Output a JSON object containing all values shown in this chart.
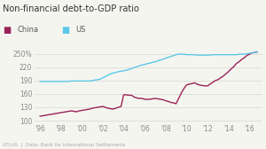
{
  "title": "Non-financial debt-to-GDP ratio",
  "legend": [
    "China",
    "US"
  ],
  "china_color": "#9b2257",
  "us_color": "#5bc8e8",
  "background_color": "#f5f5f0",
  "yticks": [
    100,
    130,
    160,
    190,
    220,
    250
  ],
  "ytick_labels": [
    "100",
    "130",
    "160",
    "190",
    "220",
    "250%"
  ],
  "xticks": [
    1996,
    1998,
    2000,
    2002,
    2004,
    2006,
    2008,
    2010,
    2012,
    2014,
    2016
  ],
  "xtick_labels": [
    "'96",
    "'98",
    "'00",
    "'02",
    "'04",
    "'06",
    "'08",
    "'10",
    "'12",
    "'14",
    "'16"
  ],
  "xlim": [
    1995.5,
    2017.2
  ],
  "ylim": [
    95,
    262
  ],
  "footer": "ATLAS  |  Data: Bank for International Settlements",
  "china_data": {
    "x": [
      1996,
      1996.25,
      1996.5,
      1996.75,
      1997,
      1997.25,
      1997.5,
      1997.75,
      1998,
      1998.25,
      1998.5,
      1998.75,
      1999,
      1999.25,
      1999.5,
      1999.75,
      2000,
      2000.25,
      2000.5,
      2000.75,
      2001,
      2001.25,
      2001.5,
      2001.75,
      2002,
      2002.25,
      2002.5,
      2002.75,
      2003,
      2003.25,
      2003.5,
      2003.75,
      2004,
      2004.25,
      2004.5,
      2004.75,
      2005,
      2005.25,
      2005.5,
      2005.75,
      2006,
      2006.25,
      2006.5,
      2006.75,
      2007,
      2007.25,
      2007.5,
      2007.75,
      2008,
      2008.25,
      2008.5,
      2008.75,
      2009,
      2009.25,
      2009.5,
      2009.75,
      2010,
      2010.25,
      2010.5,
      2010.75,
      2011,
      2011.25,
      2011.5,
      2011.75,
      2012,
      2012.25,
      2012.5,
      2012.75,
      2013,
      2013.25,
      2013.5,
      2013.75,
      2014,
      2014.25,
      2014.5,
      2014.75,
      2015,
      2015.25,
      2015.5,
      2015.75,
      2016,
      2016.25,
      2016.5,
      2016.75
    ],
    "y": [
      110,
      111,
      112,
      113,
      114,
      115,
      116,
      117,
      118,
      119,
      120,
      121,
      122,
      121,
      120,
      122,
      123,
      124,
      125,
      126,
      128,
      129,
      130,
      131,
      132,
      130,
      128,
      127,
      126,
      128,
      130,
      132,
      158,
      158,
      157,
      157,
      153,
      151,
      150,
      150,
      148,
      148,
      148,
      149,
      150,
      149,
      148,
      147,
      145,
      143,
      141,
      140,
      138,
      150,
      162,
      172,
      180,
      182,
      183,
      185,
      182,
      180,
      179,
      178,
      178,
      182,
      186,
      190,
      192,
      196,
      200,
      205,
      210,
      216,
      221,
      228,
      232,
      237,
      241,
      246,
      249,
      252,
      253,
      254
    ]
  },
  "us_data": {
    "x": [
      1996,
      1996.25,
      1996.5,
      1996.75,
      1997,
      1997.25,
      1997.5,
      1997.75,
      1998,
      1998.25,
      1998.5,
      1998.75,
      1999,
      1999.25,
      1999.5,
      1999.75,
      2000,
      2000.25,
      2000.5,
      2000.75,
      2001,
      2001.25,
      2001.5,
      2001.75,
      2002,
      2002.25,
      2002.5,
      2002.75,
      2003,
      2003.25,
      2003.5,
      2003.75,
      2004,
      2004.25,
      2004.5,
      2004.75,
      2005,
      2005.25,
      2005.5,
      2005.75,
      2006,
      2006.25,
      2006.5,
      2006.75,
      2007,
      2007.25,
      2007.5,
      2007.75,
      2008,
      2008.25,
      2008.5,
      2008.75,
      2009,
      2009.25,
      2009.5,
      2009.75,
      2010,
      2010.25,
      2010.5,
      2010.75,
      2011,
      2011.25,
      2011.5,
      2011.75,
      2012,
      2012.25,
      2012.5,
      2012.75,
      2013,
      2013.25,
      2013.5,
      2013.75,
      2014,
      2014.25,
      2014.5,
      2014.75,
      2015,
      2015.25,
      2015.5,
      2015.75,
      2016,
      2016.25,
      2016.5,
      2016.75
    ],
    "y": [
      188,
      188,
      188,
      188,
      188,
      188,
      188,
      188,
      188,
      188,
      188,
      188,
      189,
      189,
      189,
      189,
      189,
      189,
      189,
      189,
      190,
      191,
      192,
      193,
      196,
      199,
      202,
      205,
      207,
      208,
      210,
      211,
      212,
      213,
      215,
      217,
      219,
      221,
      223,
      225,
      226,
      228,
      229,
      231,
      232,
      234,
      236,
      238,
      240,
      242,
      244,
      246,
      248,
      249,
      249,
      249,
      248,
      248,
      248,
      248,
      247,
      247,
      247,
      247,
      247,
      247,
      248,
      248,
      248,
      248,
      248,
      248,
      248,
      248,
      248,
      248,
      249,
      249,
      249,
      250,
      251,
      252,
      253,
      255
    ]
  }
}
